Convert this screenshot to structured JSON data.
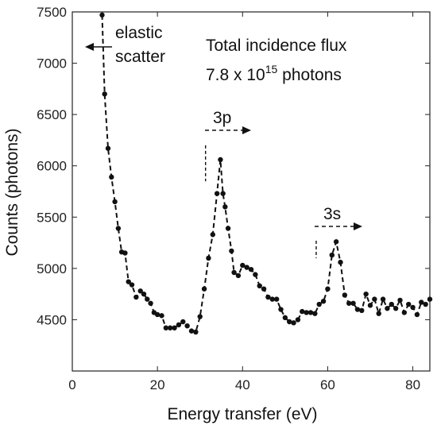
{
  "chart_data": {
    "type": "line",
    "xlabel": "Energy transfer (eV)",
    "ylabel": "Counts (photons)",
    "xlim": [
      0,
      84
    ],
    "ylim": [
      4000,
      7500
    ],
    "xticks": [
      0,
      20,
      40,
      60,
      80
    ],
    "yticks": [
      4500,
      5000,
      5500,
      6000,
      6500,
      7000,
      7500
    ],
    "grid": false,
    "annotations": {
      "flux_line1": "Total incidence flux",
      "flux_line2_prefix": "7.8 x 10",
      "flux_line2_sup": "15",
      "flux_line2_suffix": " photons",
      "elastic_line1": "elastic",
      "elastic_line2": "scatter",
      "peak_3p": "3p",
      "peak_3s": "3s",
      "marker_3p_x": 31.3,
      "marker_3s_x": 57.3
    },
    "series": [
      {
        "x": [
          7.0,
          7.6,
          8.4,
          9.2,
          10.0,
          10.8,
          11.6,
          12.4,
          13.2,
          14.0,
          15.0,
          16.0,
          16.8,
          17.6,
          18.4,
          19.2,
          20.0,
          21.0,
          22.0,
          23.0,
          24.0,
          25.0,
          26.0,
          27.0,
          28.0,
          29.0,
          30.0,
          31.0,
          32.0,
          33.0,
          34.0,
          34.8,
          35.4,
          35.9,
          36.6,
          37.4,
          38.0,
          39.0,
          40.0,
          41.0,
          42.0,
          43.0,
          44.0,
          45.0,
          46.0,
          47.0,
          48.0,
          49.0,
          50.0,
          51.0,
          52.0,
          53.0,
          54.0,
          55.0,
          56.0,
          57.0,
          58.0,
          59.0,
          60.0,
          61.0,
          62.0,
          63.0,
          64.0,
          65.0,
          66.0,
          67.0,
          68.0,
          69.0,
          70.0,
          71.0,
          72.0,
          73.0,
          74.0,
          75.0,
          76.0,
          77.0,
          78.0,
          79.0,
          80.0,
          81.0,
          82.0,
          83.0,
          84.0
        ],
        "y": [
          7470,
          6700,
          6170,
          5890,
          5650,
          5390,
          5160,
          5150,
          4870,
          4840,
          4720,
          4780,
          4750,
          4700,
          4660,
          4570,
          4550,
          4540,
          4420,
          4420,
          4420,
          4450,
          4480,
          4440,
          4390,
          4380,
          4530,
          4800,
          5100,
          5330,
          5730,
          6060,
          5730,
          5600,
          5390,
          5170,
          4960,
          4930,
          5030,
          5010,
          4990,
          4940,
          4830,
          4800,
          4720,
          4700,
          4700,
          4600,
          4520,
          4480,
          4470,
          4500,
          4580,
          4570,
          4570,
          4560,
          4650,
          4680,
          4800,
          5130,
          5260,
          5060,
          4740,
          4660,
          4660,
          4600,
          4590,
          4750,
          4640,
          4700,
          4560,
          4700,
          4610,
          4650,
          4610,
          4690,
          4570,
          4650,
          4620,
          4550,
          4670,
          4650,
          4700
        ]
      }
    ]
  }
}
